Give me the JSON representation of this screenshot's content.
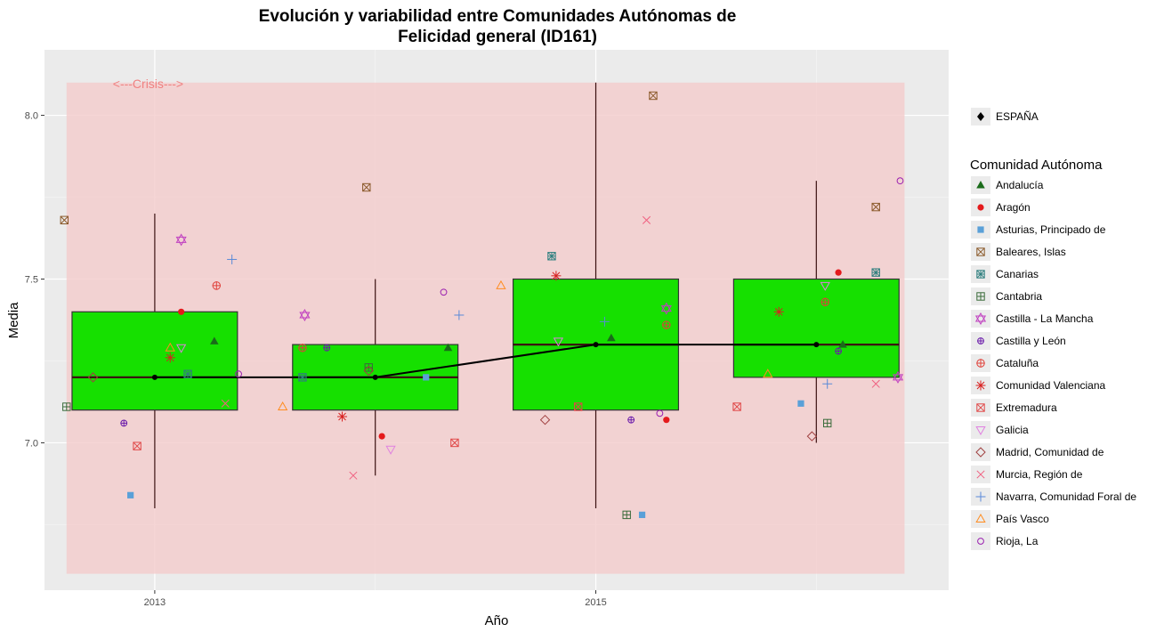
{
  "chart_data": {
    "type": "box",
    "title_line1": "Evolución y variabilidad entre Comunidades Autónomas de",
    "title_line2": "Felicidad general (ID161)",
    "xlabel": "Año",
    "ylabel": "Media",
    "ylim": [
      6.55,
      8.2
    ],
    "xlim": [
      2012.5,
      2016.6
    ],
    "y_ticks": [
      7.0,
      7.5,
      8.0
    ],
    "y_tick_labels": [
      "7.0",
      "7.5",
      "8.0"
    ],
    "x_ticks": [
      2013,
      2015
    ],
    "x_tick_labels": [
      "2013",
      "2015"
    ],
    "grid": true,
    "shaded_region": {
      "x": [
        2012.6,
        2016.4
      ],
      "y": [
        6.6,
        8.1
      ],
      "label": "<---Crisis--->",
      "color": "#f4cccc"
    },
    "box_color": "#16e000",
    "years": [
      2013,
      2014,
      2015,
      2016
    ],
    "boxes": [
      {
        "x": 2013,
        "q1": 7.1,
        "median": 7.2,
        "q3": 7.4,
        "min": 6.8,
        "max": 7.7
      },
      {
        "x": 2014,
        "q1": 7.1,
        "median": 7.2,
        "q3": 7.3,
        "min": 6.9,
        "max": 7.5
      },
      {
        "x": 2015,
        "q1": 7.1,
        "median": 7.3,
        "q3": 7.5,
        "min": 6.8,
        "max": 8.1
      },
      {
        "x": 2016,
        "q1": 7.2,
        "median": 7.3,
        "q3": 7.5,
        "min": 7.0,
        "max": 7.8
      }
    ],
    "espana": {
      "name": "ESPAÑA",
      "values": [
        7.2,
        7.2,
        7.3,
        7.3
      ]
    },
    "legend_title": "Comunidad Autónoma",
    "series": [
      {
        "name": "Andalucía",
        "shape": "triangle-filled",
        "color": "#1a6b1a",
        "x": [
          2013.27,
          2014.33,
          2015.07,
          2016.12
        ],
        "values": [
          7.31,
          7.29,
          7.32,
          7.3
        ]
      },
      {
        "name": "Aragón",
        "shape": "circle-filled",
        "color": "#e41a1c",
        "x": [
          2013.12,
          2014.03,
          2015.32,
          2016.1
        ],
        "values": [
          7.4,
          7.02,
          7.07,
          7.52
        ]
      },
      {
        "name": "Asturias, Principado de",
        "shape": "square-filled",
        "color": "#5aa0d8",
        "x": [
          2012.89,
          2014.23,
          2015.21,
          2015.93
        ],
        "values": [
          6.84,
          7.2,
          6.78,
          7.12
        ]
      },
      {
        "name": "Baleares, Islas",
        "shape": "square-x",
        "color": "#8b5a2b",
        "x": [
          2012.59,
          2013.96,
          2015.26,
          2016.27
        ],
        "values": [
          7.68,
          7.78,
          8.06,
          7.72
        ]
      },
      {
        "name": "Canarias",
        "shape": "square-cross-x",
        "color": "#2f7f7f",
        "x": [
          2013.15,
          2013.67,
          2014.8,
          2016.27
        ],
        "values": [
          7.21,
          7.2,
          7.57,
          7.52
        ]
      },
      {
        "name": "Cantabria",
        "shape": "square-plus",
        "color": "#3a6b3a",
        "x": [
          2012.6,
          2013.97,
          2015.14,
          2016.05
        ],
        "values": [
          7.11,
          7.23,
          6.78,
          7.06
        ]
      },
      {
        "name": "Castilla - La Mancha",
        "shape": "star-of-david",
        "color": "#c040c0",
        "x": [
          2013.12,
          2013.68,
          2015.32,
          2016.37
        ],
        "values": [
          7.62,
          7.39,
          7.41,
          7.2
        ]
      },
      {
        "name": "Castilla y León",
        "shape": "circle-plus",
        "color": "#6a1aaa",
        "x": [
          2012.86,
          2013.78,
          2015.16,
          2016.1
        ],
        "values": [
          7.06,
          7.29,
          7.07,
          7.28
        ]
      },
      {
        "name": "Cataluña",
        "shape": "circle-plus-red",
        "color": "#e0403a",
        "x": [
          2013.28,
          2013.67,
          2015.32,
          2016.04
        ],
        "values": [
          7.48,
          7.29,
          7.36,
          7.43
        ]
      },
      {
        "name": "Comunidad Valenciana",
        "shape": "asterisk",
        "color": "#d82020",
        "x": [
          2013.07,
          2013.85,
          2014.82,
          2015.83
        ],
        "values": [
          7.26,
          7.08,
          7.51,
          7.4
        ]
      },
      {
        "name": "Extremadura",
        "shape": "square-x-red",
        "color": "#e04848",
        "x": [
          2012.92,
          2014.36,
          2014.92,
          2015.64
        ],
        "values": [
          6.99,
          7.0,
          7.11,
          7.11
        ]
      },
      {
        "name": "Galicia",
        "shape": "triangle-down",
        "color": "#e080e0",
        "x": [
          2013.12,
          2014.07,
          2014.83,
          2016.04
        ],
        "values": [
          7.29,
          6.98,
          7.31,
          7.48
        ]
      },
      {
        "name": "Madrid, Comunidad de",
        "shape": "diamond",
        "color": "#a04040",
        "x": [
          2012.72,
          2013.97,
          2014.77,
          2015.98
        ],
        "values": [
          7.2,
          7.22,
          7.07,
          7.02
        ]
      },
      {
        "name": "Murcia, Región de",
        "shape": "x",
        "color": "#f06080",
        "x": [
          2013.32,
          2013.9,
          2015.23,
          2016.27
        ],
        "values": [
          7.12,
          6.9,
          7.68,
          7.18
        ]
      },
      {
        "name": "Navarra, Comunidad Foral de",
        "shape": "plus",
        "color": "#5a8ad8",
        "x": [
          2013.35,
          2014.38,
          2015.04,
          2016.05
        ],
        "values": [
          7.56,
          7.39,
          7.37,
          7.18
        ]
      },
      {
        "name": "País Vasco",
        "shape": "triangle-up",
        "color": "#ff8c20",
        "x": [
          2013.07,
          2013.58,
          2014.57,
          2015.78
        ],
        "values": [
          7.29,
          7.11,
          7.48,
          7.21
        ]
      },
      {
        "name": "Rioja, La",
        "shape": "circle",
        "color": "#9a20b0",
        "x": [
          2013.38,
          2014.31,
          2015.29,
          2016.38
        ],
        "values": [
          7.21,
          7.46,
          7.09,
          7.8
        ]
      }
    ]
  }
}
